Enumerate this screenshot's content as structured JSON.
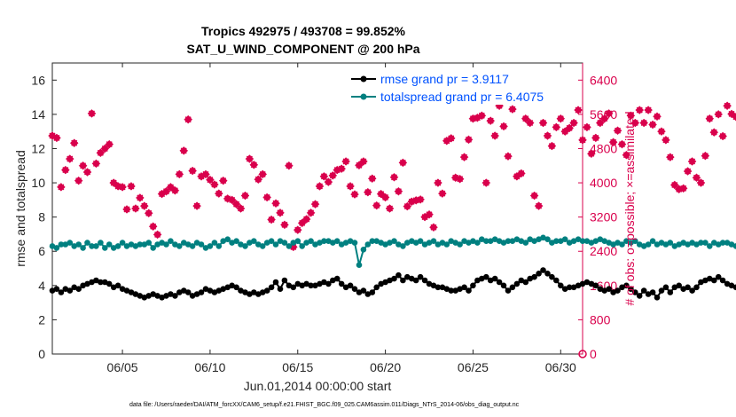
{
  "chart_data": {
    "type": "line",
    "title": "Tropics 492975 / 493708 = 99.852%",
    "subtitle": "SAT_U_WIND_COMPONENT @ 200 hPa",
    "xlabel": "Jun.01,2014 00:00:00 start",
    "ylabel": "rmse and totalspread",
    "ylabel_right": "# of obs: o=possible; ×=assimilated",
    "footer": "data file: /Users/raeder/DAI/ATM_forcXX/CAM6_setup/f.e21.FHIST_BGC.f09_025.CAM6assim.011/Diags_NTrS_2014-06/obs_diag_output.nc",
    "xlim": [
      1,
      31.25
    ],
    "ylim": [
      0,
      17
    ],
    "ylim_right": [
      0,
      6800
    ],
    "x_ticks": [
      5,
      10,
      15,
      20,
      25,
      30
    ],
    "x_tick_labels": [
      "06/05",
      "06/10",
      "06/15",
      "06/20",
      "06/25",
      "06/30"
    ],
    "y_ticks": [
      0,
      2,
      4,
      6,
      8,
      10,
      12,
      14,
      16
    ],
    "y_tick_labels": [
      "0",
      "2",
      "4",
      "6",
      "8",
      "10",
      "12",
      "14",
      "16"
    ],
    "y_ticks_right": [
      0,
      800,
      1600,
      2400,
      3200,
      4000,
      4800,
      5600,
      6400
    ],
    "y_tick_labels_right": [
      "0",
      "800",
      "1600",
      "2400",
      "3200",
      "4000",
      "4800",
      "5600",
      "6400"
    ],
    "x_start": 1.0,
    "x_step": 0.25,
    "legend_position": "top-right",
    "series": [
      {
        "name": "rmse grand pr = 3.9117",
        "color": "#000000",
        "axis": "left",
        "values": [
          3.7,
          3.8,
          3.6,
          3.8,
          3.7,
          3.9,
          3.8,
          4.0,
          4.1,
          4.2,
          4.3,
          4.2,
          4.2,
          4.1,
          3.9,
          4.0,
          3.8,
          3.7,
          3.6,
          3.5,
          3.4,
          3.3,
          3.4,
          3.5,
          3.4,
          3.3,
          3.4,
          3.5,
          3.4,
          3.6,
          3.7,
          3.6,
          3.4,
          3.5,
          3.6,
          3.8,
          3.7,
          3.6,
          3.7,
          3.8,
          3.9,
          4.0,
          3.9,
          3.7,
          3.6,
          3.5,
          3.6,
          3.5,
          3.6,
          3.7,
          3.9,
          4.2,
          3.8,
          4.3,
          4.0,
          3.9,
          4.1,
          4.0,
          4.1,
          4.0,
          4.0,
          4.1,
          4.2,
          4.1,
          4.3,
          4.4,
          4.1,
          3.9,
          4.0,
          3.8,
          3.6,
          3.7,
          3.5,
          3.6,
          3.9,
          4.1,
          4.2,
          4.3,
          4.4,
          4.6,
          4.3,
          4.5,
          4.4,
          4.3,
          4.5,
          4.3,
          4.1,
          4.0,
          3.9,
          3.9,
          3.8,
          3.7,
          3.7,
          3.8,
          3.9,
          3.7,
          4.0,
          4.3,
          4.4,
          4.5,
          4.3,
          4.4,
          4.2,
          4.0,
          3.7,
          3.9,
          4.1,
          4.3,
          4.2,
          4.4,
          4.5,
          4.7,
          4.9,
          4.7,
          4.5,
          4.3,
          4.0,
          3.8,
          3.9,
          3.9,
          4.0,
          4.1,
          4.2,
          4.1,
          4.0,
          3.8,
          3.7,
          3.8,
          3.6,
          3.7,
          3.9,
          4.0,
          3.8,
          3.6,
          3.4,
          3.7,
          3.5,
          3.6,
          3.3,
          3.7,
          3.9,
          3.6,
          3.9,
          4.0,
          3.8,
          3.9,
          3.7,
          3.9,
          4.2,
          4.3,
          4.4,
          4.3,
          4.5,
          4.3,
          4.1,
          4.0,
          3.9,
          4.0,
          3.8,
          4.3,
          4.1,
          3.7,
          3.9,
          3.8,
          3.8
        ]
      },
      {
        "name": "totalspread grand pr = 6.4075",
        "color": "#008080",
        "axis": "left",
        "values": [
          6.3,
          6.2,
          6.4,
          6.4,
          6.5,
          6.3,
          6.4,
          6.2,
          6.5,
          6.3,
          6.3,
          6.5,
          6.2,
          6.4,
          6.2,
          6.3,
          6.5,
          6.3,
          6.4,
          6.3,
          6.4,
          6.4,
          6.5,
          6.2,
          6.4,
          6.5,
          6.4,
          6.6,
          6.4,
          6.3,
          6.5,
          6.4,
          6.3,
          6.5,
          6.4,
          6.2,
          6.3,
          6.5,
          6.3,
          6.6,
          6.7,
          6.5,
          6.6,
          6.4,
          6.3,
          6.5,
          6.6,
          6.4,
          6.3,
          6.5,
          6.6,
          6.4,
          6.6,
          6.5,
          6.3,
          6.5,
          6.6,
          6.3,
          6.5,
          6.6,
          6.4,
          6.5,
          6.6,
          6.6,
          6.5,
          6.6,
          6.4,
          6.5,
          6.6,
          6.5,
          5.2,
          6.1,
          6.4,
          6.6,
          6.6,
          6.5,
          6.4,
          6.5,
          6.6,
          6.4,
          6.3,
          6.5,
          6.6,
          6.5,
          6.6,
          6.4,
          6.5,
          6.6,
          6.4,
          6.5,
          6.4,
          6.6,
          6.5,
          6.4,
          6.6,
          6.5,
          6.6,
          6.5,
          6.7,
          6.6,
          6.6,
          6.7,
          6.6,
          6.5,
          6.6,
          6.6,
          6.7,
          6.6,
          6.5,
          6.7,
          6.6,
          6.7,
          6.8,
          6.7,
          6.5,
          6.6,
          6.6,
          6.7,
          6.5,
          6.6,
          6.7,
          6.6,
          6.6,
          6.5,
          6.6,
          6.7,
          6.6,
          6.5,
          6.4,
          6.5,
          6.4,
          6.6,
          6.5,
          6.6,
          6.4,
          6.3,
          6.4,
          6.6,
          6.4,
          6.5,
          6.4,
          6.5,
          6.3,
          6.4,
          6.5,
          6.4,
          6.5,
          6.4,
          6.5,
          6.5,
          6.3,
          6.5,
          6.4,
          6.5,
          6.5,
          6.4,
          6.3,
          6.5,
          6.4,
          6.4,
          6.4,
          6.3,
          6.4
        ]
      },
      {
        "name": "obs possible / assimilated",
        "color": "#d9004c",
        "axis": "right",
        "values": [
          5100,
          5050,
          3900,
          4300,
          4560,
          4930,
          4050,
          4400,
          4250,
          5620,
          4450,
          4700,
          4800,
          4900,
          4000,
          3920,
          3900,
          3380,
          3920,
          3400,
          3650,
          3460,
          3290,
          2980,
          2790,
          3740,
          3800,
          3900,
          3820,
          4200,
          4750,
          5480,
          4280,
          3460,
          4150,
          4200,
          4070,
          3960,
          3750,
          4050,
          3630,
          3600,
          3500,
          3400,
          3700,
          4560,
          4420,
          4080,
          4200,
          3660,
          3140,
          3520,
          3300,
          3020,
          4400,
          2500,
          2900,
          3060,
          3150,
          3300,
          3500,
          3920,
          4150,
          4020,
          4170,
          4300,
          4330,
          4500,
          3920,
          3730,
          4410,
          4500,
          3780,
          4100,
          3470,
          3740,
          3660,
          3400,
          4130,
          3800,
          4470,
          3450,
          3560,
          3590,
          3610,
          3200,
          3260,
          2960,
          4000,
          3750,
          4980,
          5040,
          4120,
          4090,
          4600,
          5010,
          5500,
          5520,
          5570,
          4000,
          5450,
          5100,
          5800,
          5320,
          4620,
          5720,
          4150,
          4220,
          5500,
          5400,
          3700,
          3460,
          5400,
          5100,
          4860,
          5300,
          5500,
          5200,
          5280,
          5400,
          5700,
          5000,
          5300,
          4680,
          5050,
          5400,
          5500,
          5620,
          4950,
          5220,
          4900,
          4650,
          5570,
          5400,
          5700,
          5400,
          5700,
          5360,
          5550,
          5200,
          5000,
          4600,
          3950,
          3850,
          3870,
          4270,
          4500,
          4120,
          4000,
          4630,
          5500,
          5180,
          5600,
          5090,
          5800,
          5610,
          5540,
          5330,
          4180,
          5350,
          5010,
          5200,
          5440,
          4790,
          4810,
          4550,
          3820,
          5420,
          5300,
          5400,
          3950,
          3600,
          3800
        ]
      }
    ]
  }
}
